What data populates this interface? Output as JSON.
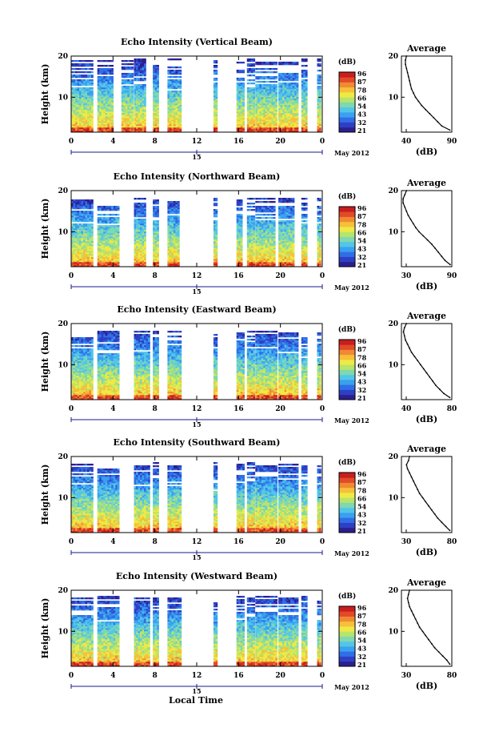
{
  "figure": {
    "x_axis_label": "Local Time",
    "date_label": "May 2012",
    "day_marker": "15",
    "colors": [
      "#2b1f8f",
      "#2f3fc4",
      "#2f6ee6",
      "#3aa0f0",
      "#53c6e8",
      "#7fd8b0",
      "#b8e46a",
      "#eeea45",
      "#f7bf3a",
      "#f08a32",
      "#e24a28",
      "#c81e1e"
    ]
  },
  "chart_data": [
    {
      "type": "heatmap",
      "title": "Echo Intensity (Vertical Beam)",
      "ylabel": "Height (km)",
      "x_ticks": [
        "0",
        "4",
        "8",
        "12",
        "16",
        "20",
        "0"
      ],
      "y_ticks": [
        "10",
        "20"
      ],
      "xlim": [
        0,
        24
      ],
      "ylim": [
        1.5,
        20
      ],
      "colorbar": {
        "unit": "(dB)",
        "ticks": [
          "96",
          "87",
          "78",
          "66",
          "54",
          "43",
          "32",
          "21"
        ],
        "range": [
          21,
          96
        ]
      },
      "profile": {
        "title": "Average",
        "xlabel": "(dB)",
        "x_ticks": [
          "40",
          "90"
        ],
        "xlim": [
          40,
          90
        ],
        "heights": [
          2,
          3,
          4,
          5,
          6,
          7,
          8,
          9,
          10,
          11,
          12,
          13,
          14,
          15,
          16,
          17,
          18,
          19,
          20
        ],
        "values": [
          88,
          80,
          76,
          72,
          68,
          64,
          60,
          57,
          54,
          52,
          50,
          49,
          48,
          47,
          46,
          45,
          44,
          44,
          45
        ]
      },
      "data_columns_hours": [
        [
          0,
          2
        ],
        [
          2.5,
          4
        ],
        [
          4.8,
          5.8
        ],
        [
          6,
          7
        ],
        [
          7.8,
          8.3
        ],
        [
          9.2,
          10.5
        ],
        [
          13.6,
          13.9
        ],
        [
          15.8,
          16.4
        ],
        [
          16.8,
          17.4
        ],
        [
          17.6,
          19.6
        ],
        [
          19.8,
          21.6
        ],
        [
          22,
          22.5
        ],
        [
          23.5,
          23.8
        ]
      ],
      "top_km": 19.5
    },
    {
      "type": "heatmap",
      "title": "Echo Intensity (Northward Beam)",
      "ylabel": "Height (km)",
      "x_ticks": [
        "0",
        "4",
        "8",
        "12",
        "16",
        "20",
        "0"
      ],
      "y_ticks": [
        "10",
        "20"
      ],
      "xlim": [
        0,
        24
      ],
      "ylim": [
        1.5,
        20
      ],
      "colorbar": {
        "unit": "(dB)",
        "ticks": [
          "96",
          "87",
          "78",
          "66",
          "54",
          "43",
          "32",
          "21"
        ],
        "range": [
          21,
          96
        ]
      },
      "profile": {
        "title": "Average",
        "xlabel": "(dB)",
        "x_ticks": [
          "30",
          "90"
        ],
        "xlim": [
          30,
          90
        ],
        "heights": [
          2,
          3,
          4,
          5,
          6,
          7,
          8,
          9,
          10,
          11,
          12,
          13,
          14,
          15,
          16,
          17,
          18,
          19,
          20
        ],
        "values": [
          88,
          82,
          78,
          74,
          70,
          66,
          61,
          56,
          51,
          47,
          44,
          41,
          38,
          36,
          34,
          32,
          32,
          34,
          36
        ]
      },
      "data_columns_hours": [
        [
          0,
          2
        ],
        [
          2.5,
          4.5
        ],
        [
          6,
          7
        ],
        [
          7.8,
          8.2
        ],
        [
          9.2,
          10.2
        ],
        [
          13.6,
          13.9
        ],
        [
          15.8,
          16.3
        ],
        [
          16.8,
          17.4
        ],
        [
          17.6,
          19.4
        ],
        [
          19.8,
          21.3
        ],
        [
          22,
          22.4
        ],
        [
          23.5,
          23.8
        ]
      ],
      "top_km": 18.5
    },
    {
      "type": "heatmap",
      "title": "Echo Intensity (Eastward Beam)",
      "ylabel": "Height (km)",
      "x_ticks": [
        "0",
        "4",
        "8",
        "12",
        "16",
        "20",
        "0"
      ],
      "y_ticks": [
        "10",
        "20"
      ],
      "xlim": [
        0,
        24
      ],
      "ylim": [
        1.5,
        20
      ],
      "colorbar": {
        "unit": "(dB)",
        "ticks": [
          "96",
          "87",
          "78",
          "66",
          "54",
          "43",
          "32",
          "21"
        ],
        "range": [
          21,
          96
        ]
      },
      "profile": {
        "title": "Average",
        "xlabel": "(dB)",
        "x_ticks": [
          "40",
          "80"
        ],
        "xlim": [
          30,
          80
        ],
        "heights": [
          2,
          3,
          4,
          5,
          6,
          7,
          8,
          9,
          10,
          11,
          12,
          13,
          14,
          15,
          16,
          17,
          18,
          19,
          20
        ],
        "values": [
          78,
          72,
          68,
          64,
          61,
          58,
          55,
          52,
          49,
          46,
          43,
          40,
          38,
          36,
          34,
          33,
          32,
          33,
          35
        ]
      },
      "data_columns_hours": [
        [
          0,
          2
        ],
        [
          2.5,
          4.5
        ],
        [
          6,
          7.5
        ],
        [
          7.8,
          8.3
        ],
        [
          9.2,
          10.5
        ],
        [
          13.6,
          13.9
        ],
        [
          15.8,
          16.4
        ],
        [
          16.8,
          17.4
        ],
        [
          17.6,
          19.6
        ],
        [
          19.8,
          21.6
        ],
        [
          22,
          22.5
        ],
        [
          23.5,
          23.8
        ]
      ],
      "top_km": 18.5
    },
    {
      "type": "heatmap",
      "title": "Echo Intensity (Southward Beam)",
      "ylabel": "Height (km)",
      "x_ticks": [
        "0",
        "4",
        "8",
        "12",
        "16",
        "20",
        "0"
      ],
      "y_ticks": [
        "10",
        "20"
      ],
      "xlim": [
        0,
        24
      ],
      "ylim": [
        1.5,
        20
      ],
      "colorbar": {
        "unit": "(dB)",
        "ticks": [
          "96",
          "87",
          "78",
          "66",
          "54",
          "43",
          "32",
          "21"
        ],
        "range": [
          21,
          96
        ]
      },
      "profile": {
        "title": "Average",
        "xlabel": "(dB)",
        "x_ticks": [
          "30",
          "80"
        ],
        "xlim": [
          30,
          80
        ],
        "heights": [
          2,
          3,
          4,
          5,
          6,
          7,
          8,
          9,
          10,
          11,
          12,
          13,
          14,
          15,
          16,
          17,
          18,
          19,
          20
        ],
        "values": [
          78,
          74,
          70,
          66,
          63,
          60,
          57,
          54,
          51,
          48,
          46,
          44,
          42,
          40,
          38,
          36,
          35,
          37,
          38
        ]
      },
      "data_columns_hours": [
        [
          0,
          2
        ],
        [
          2.5,
          4.5
        ],
        [
          6,
          7.5
        ],
        [
          7.8,
          8.3
        ],
        [
          9.2,
          10.5
        ],
        [
          13.6,
          13.9
        ],
        [
          15.8,
          16.4
        ],
        [
          16.8,
          17.4
        ],
        [
          17.6,
          19.6
        ],
        [
          19.8,
          21.6
        ],
        [
          22,
          22.5
        ],
        [
          23.5,
          23.8
        ]
      ],
      "top_km": 19
    },
    {
      "type": "heatmap",
      "title": "Echo Intensity (Westward Beam)",
      "ylabel": "Height (km)",
      "x_ticks": [
        "0",
        "4",
        "8",
        "12",
        "16",
        "20",
        "0"
      ],
      "y_ticks": [
        "10",
        "20"
      ],
      "xlim": [
        0,
        24
      ],
      "ylim": [
        1.5,
        20
      ],
      "colorbar": {
        "unit": "(dB)",
        "ticks": [
          "96",
          "87",
          "78",
          "66",
          "54",
          "43",
          "32",
          "21"
        ],
        "range": [
          21,
          96
        ]
      },
      "profile": {
        "title": "Average",
        "xlabel": "(dB)",
        "x_ticks": [
          "30",
          "80"
        ],
        "xlim": [
          30,
          80
        ],
        "heights": [
          2,
          3,
          4,
          5,
          6,
          7,
          8,
          9,
          10,
          11,
          12,
          13,
          14,
          15,
          16,
          17,
          18,
          19,
          20
        ],
        "values": [
          78,
          75,
          71,
          67,
          63,
          60,
          57,
          54,
          51,
          48,
          46,
          44,
          42,
          40,
          38,
          37,
          36,
          37,
          38
        ]
      },
      "data_columns_hours": [
        [
          0,
          2
        ],
        [
          2.5,
          4.5
        ],
        [
          6,
          7.5
        ],
        [
          7.8,
          8.3
        ],
        [
          9.2,
          10.5
        ],
        [
          13.6,
          13.9
        ],
        [
          15.8,
          16.4
        ],
        [
          16.8,
          17.4
        ],
        [
          17.6,
          19.6
        ],
        [
          19.8,
          21.6
        ],
        [
          22,
          22.5
        ],
        [
          23.5,
          23.8
        ]
      ],
      "top_km": 19
    }
  ]
}
